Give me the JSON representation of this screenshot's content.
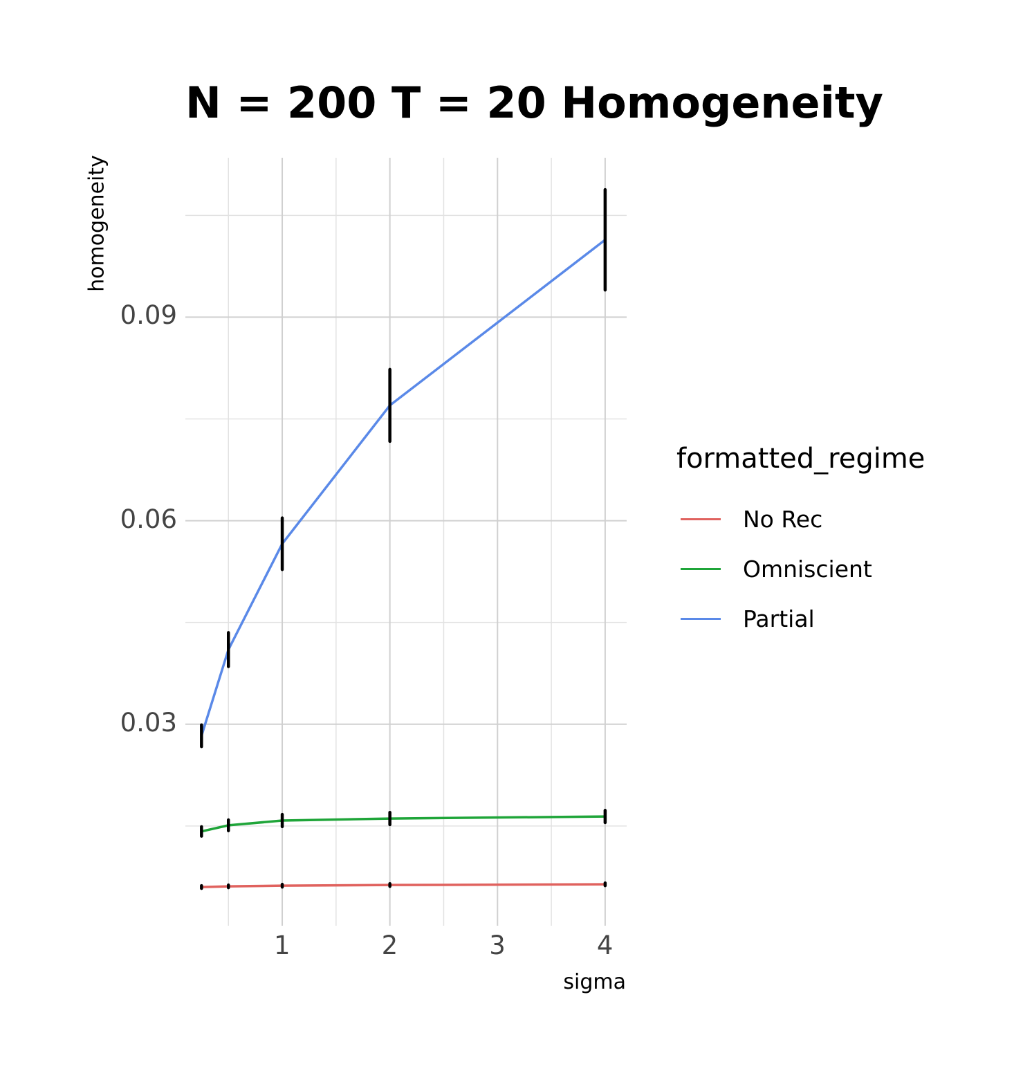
{
  "chart_data": {
    "type": "line",
    "title": "N = 200 T = 20 Homogeneity",
    "xlabel": "sigma",
    "ylabel": "homogeneity",
    "x": [
      0.25,
      0.5,
      1,
      2,
      4
    ],
    "xlim": [
      0.1,
      4.2
    ],
    "ylim": [
      0.0003,
      0.1135
    ],
    "x_ticks": [
      1,
      2,
      3,
      4
    ],
    "x_tick_labels": [
      "1",
      "2",
      "3",
      "4"
    ],
    "y_ticks": [
      0.03,
      0.06,
      0.09
    ],
    "y_tick_labels": [
      "0.03",
      "0.06",
      "0.09"
    ],
    "grid": true,
    "legend": {
      "title": "formatted_regime",
      "position": "right"
    },
    "series": [
      {
        "name": "No Rec",
        "color": "#e0625e",
        "values": [
          0.006,
          0.0061,
          0.0062,
          0.0063,
          0.0064
        ],
        "err": [
          0.0002,
          0.0002,
          0.0002,
          0.0002,
          0.0002
        ]
      },
      {
        "name": "Omniscient",
        "color": "#1fa539",
        "values": [
          0.0142,
          0.0151,
          0.0158,
          0.0161,
          0.0164
        ],
        "err": [
          0.0007,
          0.0008,
          0.0009,
          0.0009,
          0.0009
        ]
      },
      {
        "name": "Partial",
        "color": "#5a89e8",
        "values": [
          0.0283,
          0.041,
          0.0566,
          0.077,
          0.1014
        ],
        "err": [
          0.0016,
          0.0025,
          0.0038,
          0.0053,
          0.0074
        ]
      }
    ]
  }
}
